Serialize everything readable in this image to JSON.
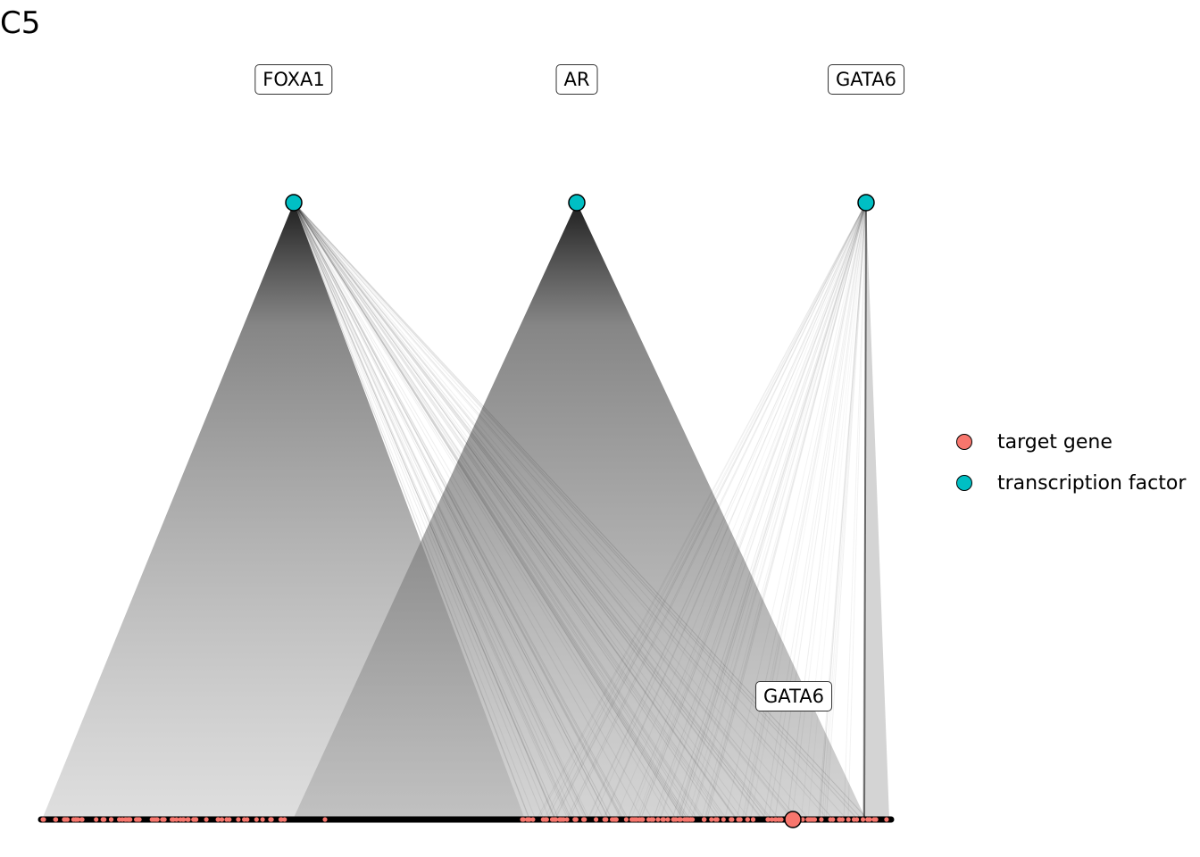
{
  "panel_label": "C5",
  "colors": {
    "target_gene": "#F8766D",
    "transcription_factor": "#00BFC4",
    "edge": "#000000"
  },
  "legend": [
    {
      "label": "target gene",
      "kind": "target_gene"
    },
    {
      "label": "transcription factor",
      "kind": "transcription_factor"
    }
  ],
  "transcription_factors": [
    {
      "name": "FOXA1"
    },
    {
      "name": "AR"
    },
    {
      "name": "GATA6"
    }
  ],
  "highlighted_target": {
    "name": "GATA6"
  }
}
